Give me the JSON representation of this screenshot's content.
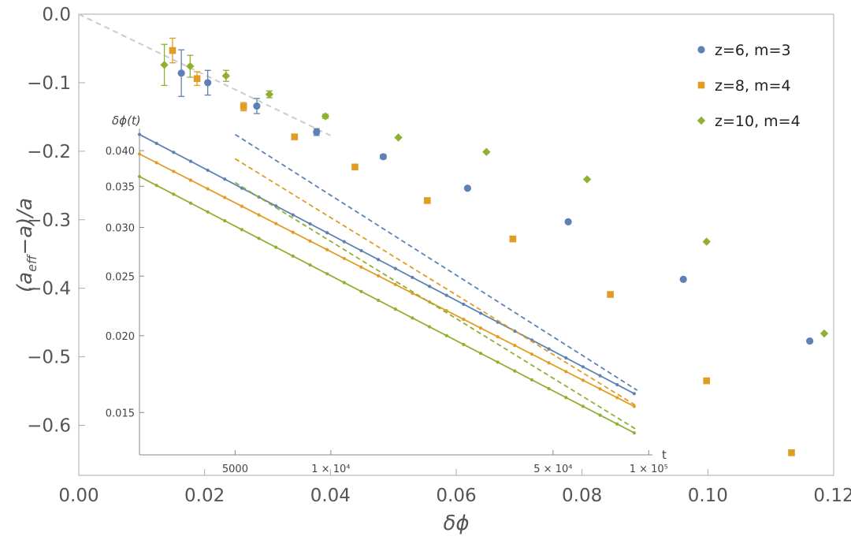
{
  "chart_data": [
    {
      "type": "scatter",
      "panel": "main",
      "xlabel": "δϕ",
      "ylabel": "(a_eff−a)/a",
      "ylabel_parts": {
        "open": "(",
        "a1": "a",
        "sub": "eff",
        "rest": "−a)/a"
      },
      "xlim": [
        0.0,
        0.12
      ],
      "ylim": [
        -0.65,
        0.0
      ],
      "xticks": [
        0.0,
        0.02,
        0.04,
        0.06,
        0.08,
        0.1,
        0.12
      ],
      "xtick_labels": [
        "0.00",
        "0.02",
        "0.04",
        "0.06",
        "0.08",
        "0.10",
        "0.12"
      ],
      "yticks": [
        0.0,
        -0.1,
        -0.2,
        -0.3,
        -0.4,
        -0.5,
        -0.6
      ],
      "ytick_labels": [
        "0.0",
        "−0.1",
        "−0.2",
        "−0.3",
        "−0.4",
        "−0.5",
        "−0.6"
      ],
      "grid": false,
      "legend_position": "top-right",
      "reference_line": {
        "x": [
          0.0,
          0.04
        ],
        "y": [
          0.0,
          -0.177
        ],
        "style": "dashed",
        "color": "#c8c8c8"
      },
      "series": [
        {
          "name": "z=6, m=3",
          "marker": "circle",
          "color": "#5e81b5",
          "x": [
            0.0163,
            0.0205,
            0.0283,
            0.0378,
            0.0484,
            0.0618,
            0.0778,
            0.0961,
            0.1162
          ],
          "y": [
            -0.086,
            -0.1,
            -0.134,
            -0.172,
            -0.208,
            -0.254,
            -0.303,
            -0.387,
            -0.477
          ],
          "err": [
            0.034,
            0.018,
            0.011,
            0.005,
            0.003,
            0,
            0,
            0,
            0
          ]
        },
        {
          "name": "z=8, m=4",
          "marker": "square",
          "color": "#e19c24",
          "x": [
            0.0149,
            0.0188,
            0.0262,
            0.0343,
            0.0439,
            0.0554,
            0.069,
            0.0845,
            0.0998,
            0.1133
          ],
          "y": [
            -0.053,
            -0.094,
            -0.135,
            -0.179,
            -0.223,
            -0.272,
            -0.328,
            -0.409,
            -0.535,
            -0.64
          ],
          "err": [
            0.018,
            0.01,
            0.006,
            0,
            0,
            0,
            0,
            0,
            0,
            0
          ]
        },
        {
          "name": "z=10, m=4",
          "marker": "diamond",
          "color": "#8fb032",
          "x": [
            0.0136,
            0.0177,
            0.0234,
            0.0303,
            0.0392,
            0.0508,
            0.0648,
            0.0808,
            0.0998,
            0.1185
          ],
          "y": [
            -0.074,
            -0.076,
            -0.09,
            -0.117,
            -0.149,
            -0.18,
            -0.201,
            -0.241,
            -0.332,
            -0.466
          ],
          "err": [
            0.03,
            0.016,
            0.008,
            0.005,
            0.003,
            0,
            0,
            0,
            0,
            0
          ]
        }
      ]
    },
    {
      "type": "line",
      "panel": "inset",
      "title": "δϕ(t)",
      "xlabel": "t",
      "xscale": "log",
      "yscale": "log",
      "xlim": [
        2500,
        110000
      ],
      "ylim": [
        0.0128,
        0.0445
      ],
      "xticks": [
        5000,
        10000,
        50000,
        100000
      ],
      "xtick_labels": [
        "5000",
        "1 × 10⁴",
        "5 × 10⁴",
        "1 × 10⁵"
      ],
      "yticks": [
        0.015,
        0.02,
        0.025,
        0.03,
        0.035,
        0.04
      ],
      "ytick_labels": [
        "0.015",
        "0.020",
        "0.025",
        "0.030",
        "0.035",
        "0.040"
      ],
      "t_range": [
        2500,
        90000
      ],
      "series": [
        {
          "name": "z=6, m=3",
          "color": "#5e81b5",
          "fit_start": 0.0425,
          "fit_end": 0.0161,
          "asym_start_t": 5000,
          "asym_start": 0.0425,
          "asym_end_t": 92000,
          "asym_end": 0.0163
        },
        {
          "name": "z=8, m=4",
          "color": "#e19c24",
          "fit_start": 0.0395,
          "fit_end": 0.01535,
          "asym_start_t": 5000,
          "asym_start": 0.0388,
          "asym_end_t": 92000,
          "asym_end": 0.01535
        },
        {
          "name": "z=10, m=4",
          "color": "#8fb032",
          "fit_start": 0.0363,
          "fit_end": 0.0139,
          "asym_start_t": 5000,
          "asym_start": 0.0355,
          "asym_end_t": 92000,
          "asym_end": 0.01405
        }
      ]
    }
  ]
}
